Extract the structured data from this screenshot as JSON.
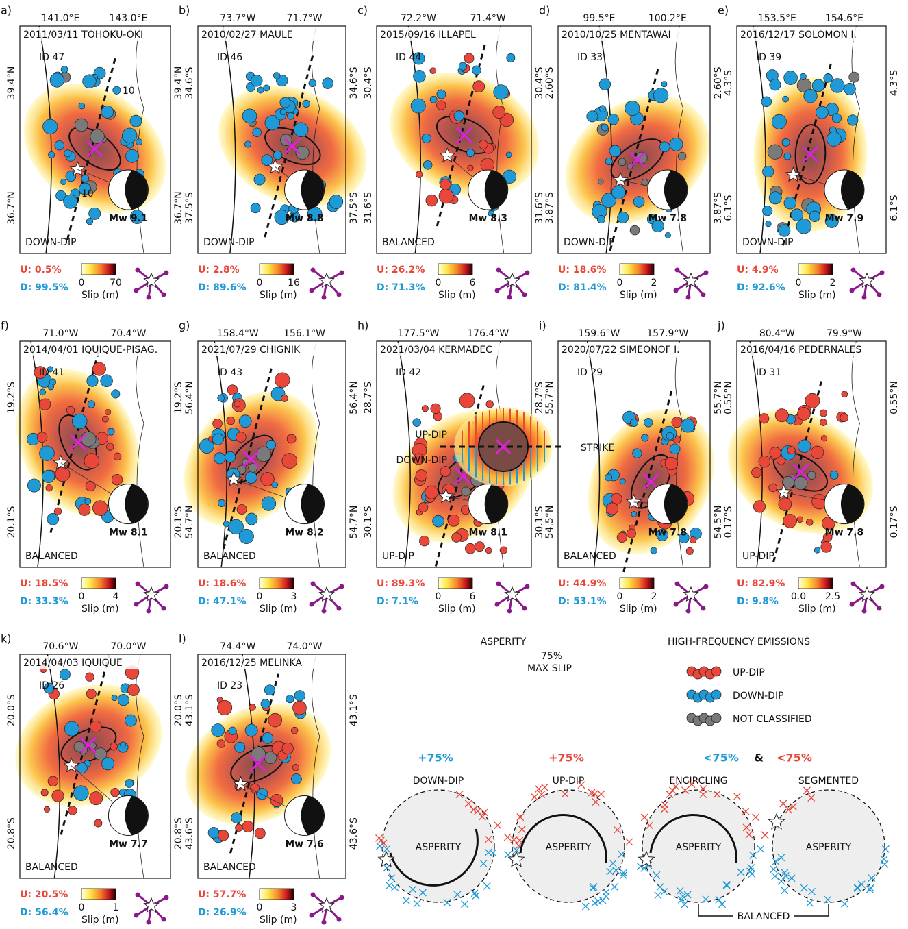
{
  "panels": [
    {
      "label": "a)",
      "lon": [
        "141.0°E",
        "143.0°E"
      ],
      "lat": [
        "39.4°N",
        "36.7°N"
      ],
      "event": "2011/03/11 TOHOKU-OKI",
      "id": "ID 47",
      "mw": "Mw 9.1",
      "class": "DOWN-DIP",
      "u": "U: 0.5%",
      "d": "D: 99.5%",
      "cbar": [
        "0",
        "70"
      ],
      "contour_labels": [
        "10",
        "10"
      ]
    },
    {
      "label": "b)",
      "lon": [
        "73.7°W",
        "71.7°W"
      ],
      "lat": [
        "34.6°S",
        "37.5°S"
      ],
      "event": "2010/02/27 MAULE",
      "id": "ID 46",
      "mw": "Mw 8.8",
      "class": "DOWN-DIP",
      "u": "U: 2.8%",
      "d": "D: 89.6%",
      "cbar": [
        "0",
        "16"
      ]
    },
    {
      "label": "c)",
      "lon": [
        "72.2°W",
        "71.4°W"
      ],
      "lat": [
        "30.4°S",
        "31.6°S"
      ],
      "event": "2015/09/16 ILLAPEL",
      "id": "ID 44",
      "mw": "Mw 8.3",
      "class": "BALANCED",
      "u": "U: 26.2%",
      "d": "D: 71.3%",
      "cbar": [
        "0",
        "6"
      ]
    },
    {
      "label": "d)",
      "lon": [
        "99.5°E",
        "100.2°E"
      ],
      "lat": [
        "2.60°S",
        "3.87°S"
      ],
      "event": "2010/10/25 MENTAWAI",
      "id": "ID 33",
      "mw": "Mw 7.8",
      "class": "DOWN-DIP",
      "u": "U: 18.6%",
      "d": "D: 81.4%",
      "cbar": [
        "0",
        "2"
      ]
    },
    {
      "label": "e)",
      "lon": [
        "153.5°E",
        "154.6°E"
      ],
      "lat": [
        "4.3°S",
        "6.1°S"
      ],
      "event": "2016/12/17 SOLOMON I.",
      "id": "ID 39",
      "mw": "Mw 7.9",
      "class": "DOWN-DIP",
      "u": "U: 4.9%",
      "d": "D: 92.6%",
      "cbar": [
        "0",
        "2"
      ]
    },
    {
      "label": "f)",
      "lon": [
        "71.0°W",
        "70.4°W"
      ],
      "lat": [
        "19.2°S",
        "20.1°S"
      ],
      "event": "2014/04/01 IQUIQUE-PISAG.",
      "id": "ID 41",
      "mw": "Mw 8.1",
      "class": "BALANCED",
      "u": "U: 18.5%",
      "d": "D: 33.3%",
      "cbar": [
        "0",
        "4"
      ]
    },
    {
      "label": "g)",
      "lon": [
        "158.4°W",
        "156.1°W"
      ],
      "lat": [
        "56.4°N",
        "54.7°N"
      ],
      "event": "2021/07/29 CHIGNIK",
      "id": "ID 43",
      "mw": "Mw 8.2",
      "class": "BALANCED",
      "u": "U: 18.6%",
      "d": "D: 47.1%",
      "cbar": [
        "0",
        "3"
      ]
    },
    {
      "label": "h)",
      "lon": [
        "177.5°W",
        "176.4°W"
      ],
      "lat": [
        "28.7°S",
        "30.1°S"
      ],
      "event": "2021/03/04 KERMADEC",
      "id": "ID 42",
      "mw": "Mw 8.1",
      "class": "UP-DIP",
      "u": "U: 89.3%",
      "d": "D: 7.1%",
      "cbar": [
        "0",
        "6"
      ]
    },
    {
      "label": "i)",
      "lon": [
        "159.6°W",
        "157.9°W"
      ],
      "lat": [
        "55.7°N",
        "54.5°N"
      ],
      "event": "2020/07/22 SIMEONOF I.",
      "id": "ID 29",
      "mw": "Mw 7.8",
      "class": "BALANCED",
      "u": "U: 44.9%",
      "d": "D: 53.1%",
      "cbar": [
        "0",
        "2"
      ]
    },
    {
      "label": "j)",
      "lon": [
        "80.4°W",
        "79.9°W"
      ],
      "lat": [
        "0.55°N",
        "0.17°S"
      ],
      "event": "2016/04/16 PEDERNALES",
      "id": "ID 31",
      "mw": "Mw 7.8",
      "class": "UP-DIP",
      "u": "U: 82.9%",
      "d": "D: 9.8%",
      "cbar": [
        "0.0",
        "2.5"
      ]
    },
    {
      "label": "k)",
      "lon": [
        "70.6°W",
        "70.0°W"
      ],
      "lat": [
        "20.0°S",
        "20.8°S"
      ],
      "event": "2014/04/03 IQUIQUE",
      "id": "ID 26",
      "mw": "Mw 7.7",
      "class": "BALANCED",
      "u": "U: 20.5%",
      "d": "D: 56.4%",
      "cbar": [
        "0",
        "1"
      ]
    },
    {
      "label": "l)",
      "lon": [
        "74.4°W",
        "74.0°W"
      ],
      "lat": [
        "43.1°S",
        "43.6°S"
      ],
      "event": "2016/12/25 MELINKA",
      "id": "ID 23",
      "mw": "Mw 7.6",
      "class": "BALANCED",
      "u": "U: 57.7%",
      "d": "D: 26.9%",
      "cbar": [
        "0",
        "3"
      ]
    }
  ],
  "cbar_label": "Slip (m)",
  "legend": {
    "asperity": "ASPERITY",
    "pct": "75%",
    "max_slip": "MAX SLIP",
    "up_dip": "UP-DIP",
    "down_dip": "DOWN-DIP",
    "strike": "STRIKE",
    "hf_title": "HIGH-FREQUENCY EMISSIONS",
    "hf_items": [
      "UP-DIP",
      "DOWN-DIP",
      "NOT CLASSIFIED"
    ],
    "headers": [
      "+75%",
      "+75%",
      "<75%",
      "&",
      "<75%"
    ],
    "cases": [
      "DOWN-DIP",
      "UP-DIP",
      "ENCIRCLING",
      "SEGMENTED"
    ],
    "case_asperity": "ASPERITY",
    "balanced": "BALANCED"
  }
}
